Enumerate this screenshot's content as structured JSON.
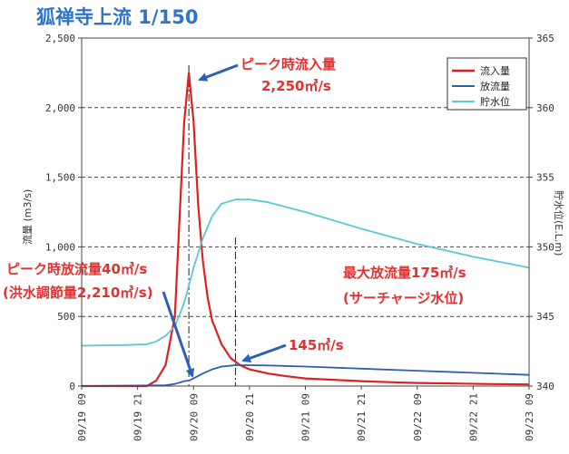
{
  "chart_data": {
    "type": "line",
    "title": "狐禅寺上流 1/150",
    "ylabel_left": "流量 (m3/s)",
    "ylabel_right": "貯水位(E.L.m)",
    "ylim_left": [
      0,
      2500
    ],
    "ylim_right": [
      340,
      365
    ],
    "left_ticks": [
      "0",
      "500",
      "1,000",
      "1,500",
      "2,000",
      "2,500"
    ],
    "left_tick_values": [
      0,
      500,
      1000,
      1500,
      2000,
      2500
    ],
    "right_ticks": [
      "340",
      "345",
      "350",
      "355",
      "360",
      "365"
    ],
    "right_tick_values": [
      340,
      345,
      350,
      355,
      360,
      365
    ],
    "x_ticks": [
      "09/19 09",
      "09/19 21",
      "09/20 09",
      "09/20 21",
      "09/21 09",
      "09/21 21",
      "09/22 09",
      "09/22 21",
      "09/23 09"
    ],
    "x_unit_note": "hours from 09/19 09:00",
    "xlim": [
      0,
      96
    ],
    "grid": true,
    "legend_position": "top-right",
    "series": [
      {
        "name": "流入量",
        "axis": "left",
        "color": "#e02020",
        "x": [
          0,
          14,
          16,
          18,
          20,
          21,
          22,
          23,
          24,
          25,
          26,
          27,
          28,
          30,
          32,
          34,
          36,
          40,
          44,
          48,
          54,
          60,
          66,
          72,
          80,
          88,
          96
        ],
        "y": [
          0,
          0,
          40,
          150,
          500,
          1200,
          1900,
          2250,
          1900,
          1300,
          900,
          640,
          470,
          300,
          200,
          150,
          120,
          90,
          70,
          55,
          45,
          35,
          28,
          22,
          18,
          14,
          12
        ]
      },
      {
        "name": "放流量",
        "axis": "left",
        "color": "#2f5fb3",
        "x": [
          0,
          18,
          20,
          22,
          23,
          24,
          26,
          28,
          30,
          33,
          36,
          40,
          48,
          60,
          72,
          84,
          96
        ],
        "y": [
          0,
          5,
          15,
          35,
          40,
          55,
          90,
          120,
          140,
          150,
          150,
          148,
          140,
          125,
          110,
          95,
          80
        ]
      },
      {
        "name": "貯水位",
        "axis": "right",
        "color": "#5ac8d8",
        "x": [
          0,
          10,
          14,
          16,
          18,
          20,
          21,
          22,
          23,
          24,
          26,
          28,
          30,
          33,
          36,
          40,
          48,
          60,
          72,
          84,
          96
        ],
        "y": [
          342.9,
          342.95,
          343.0,
          343.2,
          343.6,
          344.3,
          345.1,
          346.0,
          347.2,
          348.5,
          350.6,
          352.2,
          353.1,
          353.4,
          353.4,
          353.2,
          352.5,
          351.3,
          350.2,
          349.3,
          348.5
        ]
      }
    ],
    "annotations": [
      {
        "text": "ピーク時流入量",
        "sub": "2,250㎥/s",
        "color": "#e53030"
      },
      {
        "text": "ピーク時放流量40㎥/s",
        "sub": "(洪水調節量2,210㎥/s)",
        "color": "#e53030"
      },
      {
        "text": "最大放流量175㎥/s",
        "sub": "(サーチャージ水位)",
        "color": "#e53030"
      },
      {
        "text": "145㎥/s",
        "color": "#e53030"
      }
    ]
  }
}
